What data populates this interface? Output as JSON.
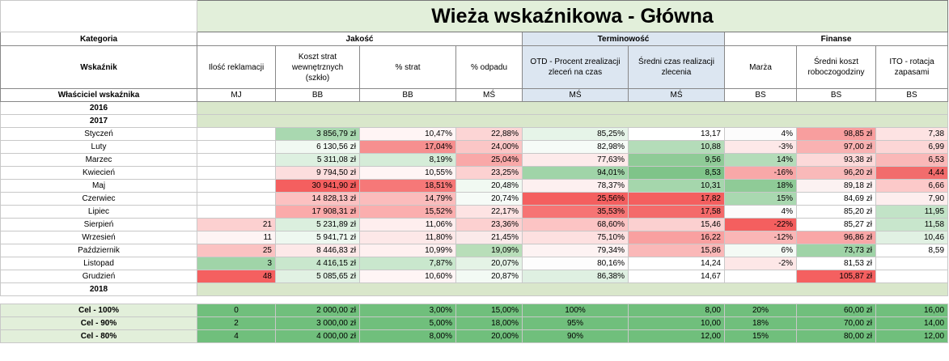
{
  "title": "Wieża wskaźnikowa - Główna",
  "header": {
    "category_label": "Kategoria",
    "indicator_label": "Wskaźnik",
    "owner_label": "Właściciel wskaźnika",
    "groups": [
      "Jakość",
      "Terminowość",
      "Finanse"
    ],
    "indicators": [
      "Ilość reklamacji",
      "Koszt strat wewnętrznych (szkło)",
      "% strat",
      "% odpadu",
      "OTD - Procent zrealizacji zleceń na czas",
      "Średni czas realizacji zlecenia",
      "Marża",
      "Średni koszt roboczogodziny",
      "ITO - rotacja zapasami"
    ],
    "owners": [
      "MJ",
      "BB",
      "BB",
      "MŚ",
      "MŚ",
      "MŚ",
      "BS",
      "BS",
      "BS"
    ]
  },
  "years": {
    "y2016": "2016",
    "y2017": "2017",
    "y2018": "2018"
  },
  "months": [
    {
      "name": "Styczeń",
      "cells": [
        {
          "v": "",
          "c": "#ffffff"
        },
        {
          "v": "3 856,79 zł",
          "c": "#a9d8b0"
        },
        {
          "v": "10,47%",
          "c": "#fff5f5"
        },
        {
          "v": "22,88%",
          "c": "#fcd5d5"
        },
        {
          "v": "85,25%",
          "c": "#e6f4e8"
        },
        {
          "v": "13,17",
          "c": "#ffffff"
        },
        {
          "v": "4%",
          "c": "#fcfcfc"
        },
        {
          "v": "98,85 zł",
          "c": "#f89e9e"
        },
        {
          "v": "7,38",
          "c": "#fde3e3"
        }
      ]
    },
    {
      "name": "Luty",
      "cells": [
        {
          "v": "",
          "c": "#ffffff"
        },
        {
          "v": "6 130,56 zł",
          "c": "#f1f9f2"
        },
        {
          "v": "17,04%",
          "c": "#f68f8f"
        },
        {
          "v": "24,00%",
          "c": "#fbc6c6"
        },
        {
          "v": "82,98%",
          "c": "#f6fbf7"
        },
        {
          "v": "10,88",
          "c": "#b4dcb9"
        },
        {
          "v": "-3%",
          "c": "#fde8e8"
        },
        {
          "v": "97,00 zł",
          "c": "#f9b2b2"
        },
        {
          "v": "6,99",
          "c": "#fcd6d6"
        }
      ]
    },
    {
      "name": "Marzec",
      "cells": [
        {
          "v": "",
          "c": "#ffffff"
        },
        {
          "v": "5 311,08 zł",
          "c": "#ddf0e0"
        },
        {
          "v": "8,19%",
          "c": "#d5ecd8"
        },
        {
          "v": "25,04%",
          "c": "#f9a8a8"
        },
        {
          "v": "77,63%",
          "c": "#fdeaea"
        },
        {
          "v": "9,56",
          "c": "#8fcb97"
        },
        {
          "v": "14%",
          "c": "#b4dcb9"
        },
        {
          "v": "93,38 zł",
          "c": "#fcd9d9"
        },
        {
          "v": "6,53",
          "c": "#fab8b8"
        }
      ]
    },
    {
      "name": "Kwiecień",
      "cells": [
        {
          "v": "",
          "c": "#ffffff"
        },
        {
          "v": "9 794,50 zł",
          "c": "#fcdede"
        },
        {
          "v": "10,55%",
          "c": "#fff5f5"
        },
        {
          "v": "23,25%",
          "c": "#fcd1d1"
        },
        {
          "v": "94,01%",
          "c": "#a0d4a8"
        },
        {
          "v": "8,53",
          "c": "#7fc489"
        },
        {
          "v": "-16%",
          "c": "#f8a8a8"
        },
        {
          "v": "96,20 zł",
          "c": "#f9b9b9"
        },
        {
          "v": "4,44",
          "c": "#f26c6c"
        }
      ]
    },
    {
      "name": "Maj",
      "cells": [
        {
          "v": "",
          "c": "#ffffff"
        },
        {
          "v": "30 941,90 zł",
          "c": "#f45f5f"
        },
        {
          "v": "18,51%",
          "c": "#f67878"
        },
        {
          "v": "20,48%",
          "c": "#f1f9f2"
        },
        {
          "v": "78,37%",
          "c": "#fdf0f0"
        },
        {
          "v": "10,31",
          "c": "#a5d6ac"
        },
        {
          "v": "18%",
          "c": "#8fcb97"
        },
        {
          "v": "89,18 zł",
          "c": "#fcf2f2"
        },
        {
          "v": "6,66",
          "c": "#fcc9c9"
        }
      ]
    },
    {
      "name": "Czerwiec",
      "cells": [
        {
          "v": "",
          "c": "#ffffff"
        },
        {
          "v": "14 828,13 zł",
          "c": "#fcc1c1"
        },
        {
          "v": "14,79%",
          "c": "#fbbcbc"
        },
        {
          "v": "20,74%",
          "c": "#f6fbf7"
        },
        {
          "v": "25,56%",
          "c": "#f45f5f"
        },
        {
          "v": "17,82",
          "c": "#f45f5f"
        },
        {
          "v": "15%",
          "c": "#a9d8b0"
        },
        {
          "v": "84,69 zł",
          "c": "#ffffff"
        },
        {
          "v": "7,90",
          "c": "#fdeeee"
        }
      ]
    },
    {
      "name": "Lipiec",
      "cells": [
        {
          "v": "",
          "c": "#ffffff"
        },
        {
          "v": "17 908,31 zł",
          "c": "#fbaaaa"
        },
        {
          "v": "15,52%",
          "c": "#fbaeae"
        },
        {
          "v": "22,17%",
          "c": "#fde3e3"
        },
        {
          "v": "35,53%",
          "c": "#f67474"
        },
        {
          "v": "17,58",
          "c": "#f46a6a"
        },
        {
          "v": "4%",
          "c": "#fcfcfc"
        },
        {
          "v": "85,20 zł",
          "c": "#ffffff"
        },
        {
          "v": "11,95",
          "c": "#c2e3c7"
        }
      ]
    },
    {
      "name": "Sierpień",
      "cells": [
        {
          "v": "21",
          "c": "#fcd0d0"
        },
        {
          "v": "5 231,89 zł",
          "c": "#dbefde"
        },
        {
          "v": "11,06%",
          "c": "#feeeee"
        },
        {
          "v": "23,36%",
          "c": "#fcd0d0"
        },
        {
          "v": "68,60%",
          "c": "#fcc4c4"
        },
        {
          "v": "15,46",
          "c": "#fbd0d0"
        },
        {
          "v": "-22%",
          "c": "#f45f5f"
        },
        {
          "v": "85,27 zł",
          "c": "#ffffff"
        },
        {
          "v": "11,58",
          "c": "#c8e6cc"
        }
      ]
    },
    {
      "name": "Wrzesień",
      "cells": [
        {
          "v": "11",
          "c": "#fef4f4"
        },
        {
          "v": "5 941,71 zł",
          "c": "#eef8f0"
        },
        {
          "v": "11,80%",
          "c": "#fde8e8"
        },
        {
          "v": "21,45%",
          "c": "#fbeaea"
        },
        {
          "v": "75,10%",
          "c": "#fde0e0"
        },
        {
          "v": "16,22",
          "c": "#f9a0a0"
        },
        {
          "v": "-12%",
          "c": "#fab6b6"
        },
        {
          "v": "96,86 zł",
          "c": "#f9a7a7"
        },
        {
          "v": "10,46",
          "c": "#e1f1e3"
        }
      ]
    },
    {
      "name": "Październik",
      "cells": [
        {
          "v": "25",
          "c": "#fbc2c2"
        },
        {
          "v": "8 446,83 zł",
          "c": "#fde8e8"
        },
        {
          "v": "10,99%",
          "c": "#fff0f0"
        },
        {
          "v": "19,09%",
          "c": "#b8deb9"
        },
        {
          "v": "79,34%",
          "c": "#fdf3f3"
        },
        {
          "v": "15,86",
          "c": "#fab8b8"
        },
        {
          "v": "6%",
          "c": "#f4faf5"
        },
        {
          "v": "73,73 zł",
          "c": "#9fd3a7"
        },
        {
          "v": "8,59",
          "c": "#ffffff"
        }
      ]
    },
    {
      "name": "Listopad",
      "cells": [
        {
          "v": "3",
          "c": "#a0d4a8"
        },
        {
          "v": "4 416,15 zł",
          "c": "#c9e7cd"
        },
        {
          "v": "7,87%",
          "c": "#c9e7cd"
        },
        {
          "v": "20,07%",
          "c": "#e4f3e6"
        },
        {
          "v": "80,16%",
          "c": "#fdfdfd"
        },
        {
          "v": "14,24",
          "c": "#ffffff"
        },
        {
          "v": "-2%",
          "c": "#fde7e7"
        },
        {
          "v": "81,53 zł",
          "c": "#ffffff"
        },
        {
          "v": "",
          "c": "#ffffff"
        }
      ]
    },
    {
      "name": "Grudzień",
      "cells": [
        {
          "v": "48",
          "c": "#f46060"
        },
        {
          "v": "5 085,65 zł",
          "c": "#e1f1e3"
        },
        {
          "v": "10,60%",
          "c": "#fff5f5"
        },
        {
          "v": "20,87%",
          "c": "#f3faf4"
        },
        {
          "v": "86,38%",
          "c": "#dff0e2"
        },
        {
          "v": "14,67",
          "c": "#ffffff"
        },
        {
          "v": "",
          "c": "#ffffff"
        },
        {
          "v": "105,87 zł",
          "c": "#f46060"
        },
        {
          "v": "",
          "c": "#ffffff"
        }
      ]
    }
  ],
  "goals": [
    {
      "name": "Cel - 100%",
      "cells": [
        "0",
        "2 000,00 zł",
        "3,00%",
        "15,00%",
        "100%",
        "8,00",
        "20%",
        "60,00 zł",
        "16,00"
      ]
    },
    {
      "name": "Cel - 90%",
      "cells": [
        "2",
        "3 000,00 zł",
        "5,00%",
        "18,00%",
        "95%",
        "10,00",
        "18%",
        "70,00 zł",
        "14,00"
      ]
    },
    {
      "name": "Cel - 80%",
      "cells": [
        "4",
        "4 000,00 zł",
        "8,00%",
        "20,00%",
        "90%",
        "12,00",
        "15%",
        "80,00 zł",
        "12,00"
      ]
    }
  ]
}
